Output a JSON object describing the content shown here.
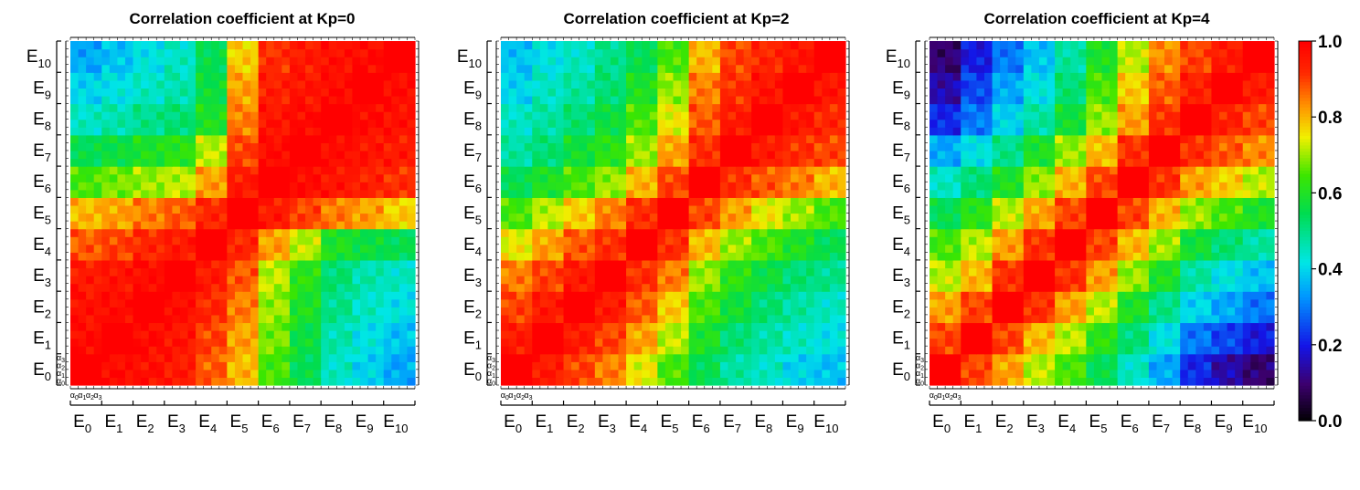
{
  "chart_data": [
    {
      "type": "heatmap",
      "title": "Correlation coefficient at Kp=0",
      "kp": 0,
      "grid_size": 44,
      "block_labels": [
        "E_0",
        "E_1",
        "E_2",
        "E_3",
        "E_4",
        "E_5",
        "E_6",
        "E_7",
        "E_8",
        "E_9",
        "E_10"
      ],
      "sub_labels": [
        "α_0",
        "α_1",
        "α_2",
        "α_3"
      ],
      "block_matrix": [
        [
          1.0,
          0.98,
          0.97,
          0.95,
          0.88,
          0.8,
          0.65,
          0.55,
          0.45,
          0.4,
          0.35
        ],
        [
          0.98,
          1.0,
          0.98,
          0.96,
          0.9,
          0.82,
          0.68,
          0.57,
          0.47,
          0.42,
          0.38
        ],
        [
          0.97,
          0.98,
          1.0,
          0.98,
          0.93,
          0.85,
          0.7,
          0.6,
          0.5,
          0.45,
          0.42
        ],
        [
          0.95,
          0.96,
          0.98,
          1.0,
          0.95,
          0.88,
          0.72,
          0.62,
          0.52,
          0.47,
          0.45
        ],
        [
          0.88,
          0.9,
          0.93,
          0.95,
          1.0,
          0.93,
          0.82,
          0.72,
          0.6,
          0.57,
          0.55
        ],
        [
          0.8,
          0.82,
          0.85,
          0.88,
          0.93,
          1.0,
          0.95,
          0.9,
          0.85,
          0.82,
          0.78
        ],
        [
          0.65,
          0.68,
          0.7,
          0.72,
          0.82,
          0.95,
          1.0,
          0.98,
          0.96,
          0.94,
          0.92
        ],
        [
          0.55,
          0.57,
          0.6,
          0.62,
          0.72,
          0.9,
          0.98,
          1.0,
          0.98,
          0.96,
          0.95
        ],
        [
          0.45,
          0.47,
          0.5,
          0.52,
          0.6,
          0.85,
          0.96,
          0.98,
          1.0,
          0.98,
          0.97
        ],
        [
          0.4,
          0.42,
          0.45,
          0.47,
          0.57,
          0.82,
          0.94,
          0.96,
          0.98,
          1.0,
          0.98
        ],
        [
          0.35,
          0.38,
          0.42,
          0.45,
          0.55,
          0.78,
          0.92,
          0.95,
          0.97,
          0.98,
          1.0
        ]
      ]
    },
    {
      "type": "heatmap",
      "title": "Correlation coefficient at Kp=2",
      "kp": 2,
      "grid_size": 44,
      "block_labels": [
        "E_0",
        "E_1",
        "E_2",
        "E_3",
        "E_4",
        "E_5",
        "E_6",
        "E_7",
        "E_8",
        "E_9",
        "E_10"
      ],
      "sub_labels": [
        "α_0",
        "α_1",
        "α_2",
        "α_3"
      ],
      "block_matrix": [
        [
          1.0,
          0.95,
          0.9,
          0.85,
          0.75,
          0.65,
          0.55,
          0.48,
          0.45,
          0.4,
          0.38
        ],
        [
          0.95,
          1.0,
          0.95,
          0.9,
          0.82,
          0.72,
          0.6,
          0.52,
          0.48,
          0.45,
          0.42
        ],
        [
          0.9,
          0.95,
          1.0,
          0.95,
          0.88,
          0.78,
          0.65,
          0.58,
          0.52,
          0.48,
          0.45
        ],
        [
          0.85,
          0.9,
          0.95,
          1.0,
          0.92,
          0.85,
          0.7,
          0.62,
          0.57,
          0.52,
          0.5
        ],
        [
          0.75,
          0.82,
          0.88,
          0.92,
          1.0,
          0.92,
          0.8,
          0.7,
          0.65,
          0.6,
          0.55
        ],
        [
          0.65,
          0.72,
          0.78,
          0.85,
          0.92,
          1.0,
          0.9,
          0.82,
          0.75,
          0.7,
          0.65
        ],
        [
          0.55,
          0.6,
          0.65,
          0.7,
          0.8,
          0.9,
          1.0,
          0.92,
          0.88,
          0.85,
          0.8
        ],
        [
          0.48,
          0.52,
          0.58,
          0.62,
          0.7,
          0.82,
          0.92,
          1.0,
          0.95,
          0.92,
          0.9
        ],
        [
          0.45,
          0.48,
          0.52,
          0.57,
          0.65,
          0.75,
          0.88,
          0.95,
          1.0,
          0.96,
          0.93
        ],
        [
          0.4,
          0.45,
          0.48,
          0.52,
          0.6,
          0.7,
          0.85,
          0.92,
          0.96,
          1.0,
          0.96
        ],
        [
          0.38,
          0.42,
          0.45,
          0.5,
          0.55,
          0.65,
          0.8,
          0.9,
          0.93,
          0.96,
          1.0
        ]
      ]
    },
    {
      "type": "heatmap",
      "title": "Correlation coefficient at Kp=4",
      "kp": 4,
      "grid_size": 44,
      "block_labels": [
        "E_0",
        "E_1",
        "E_2",
        "E_3",
        "E_4",
        "E_5",
        "E_6",
        "E_7",
        "E_8",
        "E_9",
        "E_10"
      ],
      "sub_labels": [
        "α_0",
        "α_1",
        "α_2",
        "α_3"
      ],
      "block_matrix": [
        [
          1.0,
          0.9,
          0.82,
          0.72,
          0.65,
          0.55,
          0.45,
          0.35,
          0.22,
          0.15,
          0.1
        ],
        [
          0.9,
          1.0,
          0.9,
          0.8,
          0.72,
          0.62,
          0.52,
          0.42,
          0.3,
          0.25,
          0.2
        ],
        [
          0.82,
          0.9,
          1.0,
          0.92,
          0.82,
          0.72,
          0.6,
          0.5,
          0.4,
          0.35,
          0.3
        ],
        [
          0.72,
          0.8,
          0.92,
          1.0,
          0.92,
          0.82,
          0.7,
          0.6,
          0.48,
          0.42,
          0.38
        ],
        [
          0.65,
          0.72,
          0.82,
          0.92,
          1.0,
          0.9,
          0.8,
          0.7,
          0.58,
          0.52,
          0.48
        ],
        [
          0.55,
          0.62,
          0.72,
          0.82,
          0.9,
          1.0,
          0.9,
          0.8,
          0.7,
          0.65,
          0.6
        ],
        [
          0.45,
          0.52,
          0.6,
          0.7,
          0.8,
          0.9,
          1.0,
          0.92,
          0.82,
          0.78,
          0.72
        ],
        [
          0.35,
          0.42,
          0.5,
          0.6,
          0.7,
          0.8,
          0.92,
          1.0,
          0.92,
          0.88,
          0.84
        ],
        [
          0.22,
          0.3,
          0.4,
          0.48,
          0.58,
          0.7,
          0.82,
          0.92,
          1.0,
          0.94,
          0.9
        ],
        [
          0.15,
          0.25,
          0.35,
          0.42,
          0.52,
          0.65,
          0.78,
          0.88,
          0.94,
          1.0,
          0.95
        ],
        [
          0.1,
          0.2,
          0.3,
          0.38,
          0.48,
          0.6,
          0.72,
          0.84,
          0.9,
          0.95,
          1.0
        ]
      ]
    }
  ],
  "colorbar": {
    "ticks": [
      "0.0",
      "0.2",
      "0.4",
      "0.6",
      "0.8",
      "1.0"
    ],
    "range": [
      0,
      1
    ],
    "colormap": "rainbow-black-to-red"
  }
}
